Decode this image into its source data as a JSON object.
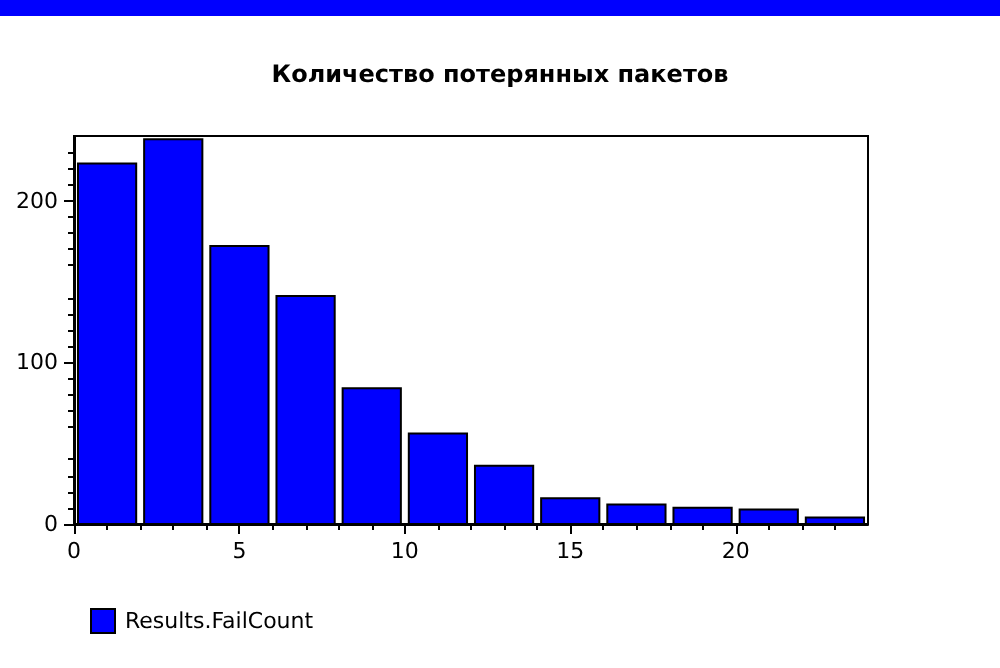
{
  "chart_data": {
    "type": "histogram",
    "title": "Количество потерянных пакетов",
    "bins": [
      0,
      2,
      4,
      6,
      8,
      10,
      12,
      14,
      16,
      18,
      20,
      22,
      24
    ],
    "series": [
      {
        "name": "Results.FailCount",
        "color": "#0000ff",
        "values": [
          223,
          238,
          172,
          141,
          84,
          56,
          36,
          16,
          12,
          10,
          9,
          4
        ]
      }
    ],
    "xlim": [
      0,
      24
    ],
    "xticks": [
      0,
      5,
      10,
      15,
      20
    ],
    "ylim": [
      0,
      240
    ],
    "yticks": [
      0,
      100,
      200
    ],
    "grid": false,
    "legend": "bottom left"
  }
}
